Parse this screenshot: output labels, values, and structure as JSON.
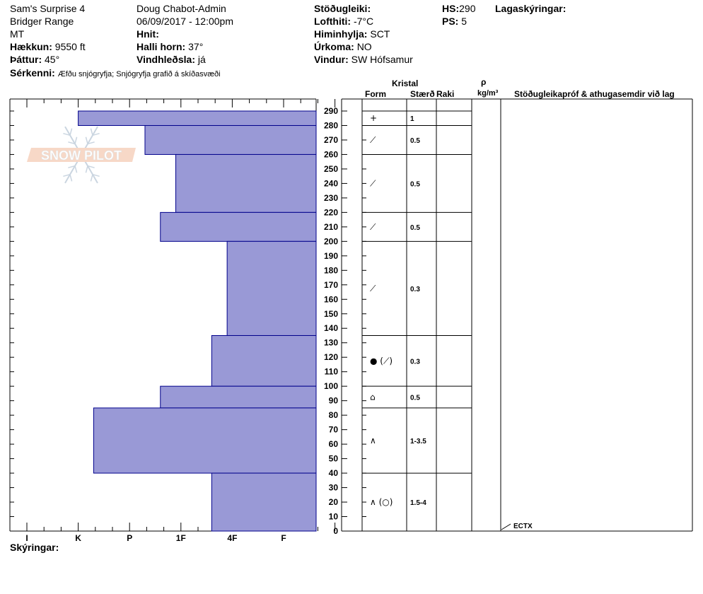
{
  "header": {
    "site": "Sam's Surprise 4",
    "range": "Bridger Range",
    "state": "MT",
    "elevation_label": "Hækkun:",
    "elevation_value": "9550 ft",
    "aspect_label": "Þáttur:",
    "aspect_value": "45°",
    "features_label": "Sérkenni:",
    "features_value": "Æfðu snjógryfja;  Snjógryfja grafið á skíðasvæði",
    "observer": "Doug Chabot-Admin",
    "datetime": "06/09/2017 - 12:00pm",
    "coords_label": "Hnit:",
    "coords_value": "",
    "slope_label": "Halli horn:",
    "slope_value": "37°",
    "wind_loading_label": "Vindhleðsla:",
    "wind_loading_value": "já",
    "stability_label": "Stöðugleiki:",
    "stability_value": "",
    "air_temp_label": "Lofthiti:",
    "air_temp_value": "-7°C",
    "sky_label": "Himinhylja:",
    "sky_value": "SCT",
    "precip_label": "Úrkoma:",
    "precip_value": "NO",
    "wind_label": "Vindur:",
    "wind_value": "SW Hófsamur",
    "hs_label": "HS:",
    "hs_value": "290",
    "ps_label": "PS:",
    "ps_value": "5",
    "layer_notes_label": "Lagaskýringar:"
  },
  "logo": {
    "text": "SNOW PILOT"
  },
  "table_headers": {
    "crystal": "Kristal",
    "form": "Form",
    "size": "Stærð",
    "moisture": "Raki",
    "rho": "ρ",
    "density_unit": "kg/m³",
    "stability_notes": "Stöðugleikapróf & athugasemdir við lag"
  },
  "footer": {
    "legend_label": "Skýringar:"
  },
  "tests": [
    {
      "label": "ECTX",
      "depth": 0
    }
  ],
  "colors": {
    "layer_fill": "#9999d6",
    "layer_stroke": "#00008b"
  },
  "chart_data": {
    "type": "bar",
    "orientation": "horizontal",
    "y_axis": {
      "min": 0,
      "max": 290,
      "ticks": [
        0,
        10,
        20,
        30,
        40,
        50,
        60,
        70,
        80,
        90,
        100,
        110,
        120,
        130,
        140,
        150,
        160,
        170,
        180,
        190,
        200,
        210,
        220,
        230,
        240,
        250,
        260,
        270,
        280,
        290
      ]
    },
    "hardness_ticks": [
      "I",
      "K",
      "P",
      "1F",
      "4F",
      "F"
    ],
    "layers": [
      {
        "top": 290,
        "bottom": 280,
        "hardness_index": 1.0,
        "form": "+",
        "size": "1"
      },
      {
        "top": 280,
        "bottom": 260,
        "hardness_index": 2.3,
        "form": "⟋",
        "size": "0.5"
      },
      {
        "top": 260,
        "bottom": 220,
        "hardness_index": 2.9,
        "form": "⟋",
        "size": "0.5"
      },
      {
        "top": 220,
        "bottom": 200,
        "hardness_index": 2.6,
        "form": "⟋",
        "size": "0.5"
      },
      {
        "top": 200,
        "bottom": 135,
        "hardness_index": 3.9,
        "form": "⟋",
        "size": "0.3"
      },
      {
        "top": 135,
        "bottom": 100,
        "hardness_index": 3.6,
        "form": "● (⟋)",
        "size": "0.3"
      },
      {
        "top": 100,
        "bottom": 85,
        "hardness_index": 2.6,
        "form": "⌂",
        "size": "0.5"
      },
      {
        "top": 85,
        "bottom": 40,
        "hardness_index": 1.3,
        "form": "∧",
        "size": "1-3.5"
      },
      {
        "top": 40,
        "bottom": 0,
        "hardness_index": 3.6,
        "form": "∧ (○)",
        "size": "1.5-4"
      }
    ]
  }
}
